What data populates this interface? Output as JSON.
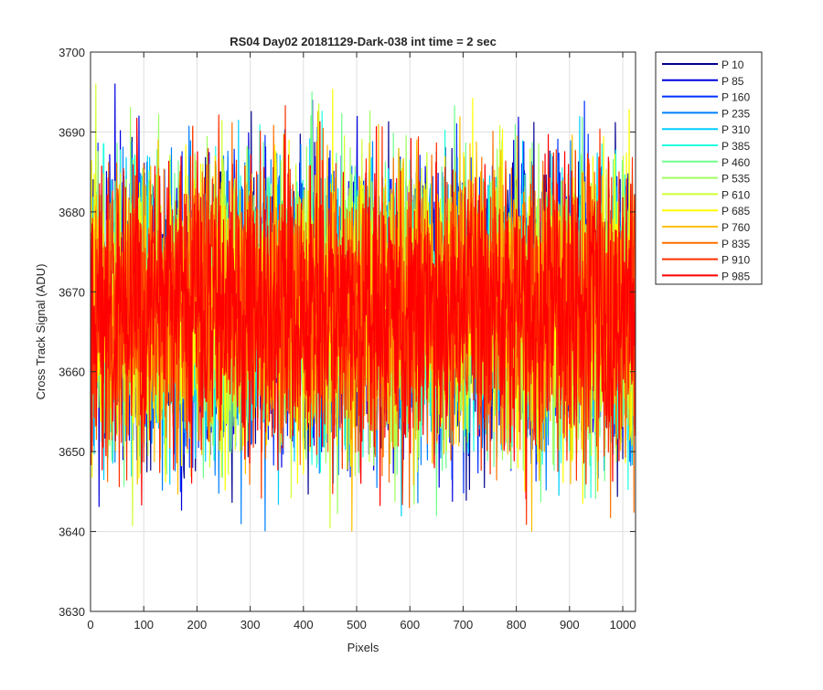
{
  "chart_data": {
    "type": "line",
    "title": "RS04 Day02 20181129-Dark-038 int time = 2 sec",
    "xlabel": "Pixels",
    "ylabel": "Cross Track Signal (ADU)",
    "xlim": [
      0,
      1024
    ],
    "ylim": [
      3630,
      3700
    ],
    "xticks": [
      0,
      100,
      200,
      300,
      400,
      500,
      600,
      700,
      800,
      900,
      1000
    ],
    "yticks": [
      3630,
      3640,
      3650,
      3660,
      3670,
      3680,
      3690,
      3700
    ],
    "grid": true,
    "legend_position": "outside-top-right",
    "points_per_series": 1024,
    "signal_mean": 3668,
    "signal_spread_typical": [
      3655,
      3682
    ],
    "signal_extremes": [
      3634,
      3696
    ],
    "series": [
      {
        "name": "P 10",
        "color": "#00008F"
      },
      {
        "name": "P 85",
        "color": "#0000DF"
      },
      {
        "name": "P 160",
        "color": "#0030FF"
      },
      {
        "name": "P 235",
        "color": "#0080FF"
      },
      {
        "name": "P 310",
        "color": "#00CFFF"
      },
      {
        "name": "P 385",
        "color": "#20FFDF"
      },
      {
        "name": "P 460",
        "color": "#70FF8F"
      },
      {
        "name": "P 535",
        "color": "#9FFF60"
      },
      {
        "name": "P 610",
        "color": "#CFFF30"
      },
      {
        "name": "P 685",
        "color": "#FFFF00"
      },
      {
        "name": "P 760",
        "color": "#FFBF00"
      },
      {
        "name": "P 835",
        "color": "#FF7000"
      },
      {
        "name": "P 910",
        "color": "#FF3000"
      },
      {
        "name": "P 985",
        "color": "#FF0000"
      }
    ]
  }
}
